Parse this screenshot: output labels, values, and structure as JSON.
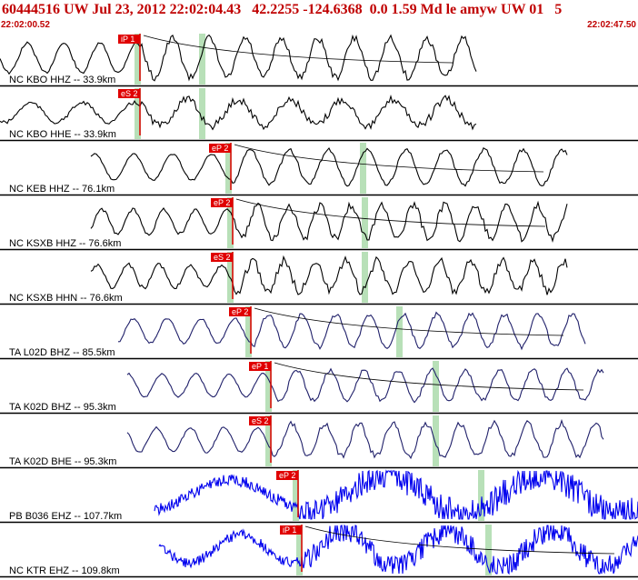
{
  "header": {
    "title": "60444516 UW Jul 23, 2012 22:02:04.43   42.2255 -124.6368  0.0 1.59 Md le amyw UW 01   5",
    "time_start": "22:02:00.52",
    "time_end": "22:02:47.50"
  },
  "colors": {
    "header_text": "#c00000",
    "pick_fill": "#e00000",
    "window_band": "#b8e0b8",
    "trace_black": "#000000",
    "trace_navy": "#20206a",
    "trace_blue": "#0000ee"
  },
  "traces": [
    {
      "label": "NC KBO HHZ -- 33.9km",
      "picks": [
        {
          "label": "iP 1",
          "t": 0.195
        }
      ],
      "color": "black",
      "amp": 0.9,
      "freq": 14,
      "noise": 0.25
    },
    {
      "label": "NC KBO HHE -- 33.9km",
      "picks": [
        {
          "label": "eS 2",
          "t": 0.3
        }
      ],
      "color": "black",
      "amp": 0.6,
      "freq": 20,
      "noise": 0.45
    },
    {
      "label": "NC KEB HHZ -- 76.1km",
      "picks": [
        {
          "label": "eP 2",
          "t": 0.36
        }
      ],
      "color": "black",
      "amp": 0.8,
      "freq": 15,
      "noise": 0.15
    },
    {
      "label": "NC KSXB HHZ -- 76.6km",
      "picks": [
        {
          "label": "eP 2",
          "t": 0.36
        }
      ],
      "color": "black",
      "amp": 0.75,
      "freq": 12,
      "noise": 0.35
    },
    {
      "label": "NC KSXB HHN -- 76.6km",
      "picks": [
        {
          "label": "eS 2",
          "t": 0.6
        }
      ],
      "color": "black",
      "amp": 0.7,
      "freq": 12,
      "noise": 0.4
    },
    {
      "label": "TA L02D BHZ -- 85.5km",
      "picks": [
        {
          "label": "eP 2",
          "t": 0.38
        }
      ],
      "color": "navy",
      "amp": 0.75,
      "freq": 13,
      "noise": 0.2
    },
    {
      "label": "TA K02D BHZ -- 95.3km",
      "picks": [
        {
          "label": "eP 1",
          "t": 0.41
        }
      ],
      "color": "navy",
      "amp": 0.7,
      "freq": 13,
      "noise": 0.2
    },
    {
      "label": "TA K02D BHE -- 95.3km",
      "picks": [
        {
          "label": "eS 2",
          "t": 0.68
        }
      ],
      "color": "navy",
      "amp": 0.75,
      "freq": 13,
      "noise": 0.25
    },
    {
      "label": "PB B036 EHZ -- 107.7km",
      "picks": [
        {
          "label": "eP 2",
          "t": 0.43
        }
      ],
      "color": "blue",
      "amp": 0.9,
      "freq": 60,
      "noise": 1.0
    },
    {
      "label": "NC KTR EHZ -- 109.8km",
      "picks": [
        {
          "label": "iP 1",
          "t": 0.44
        }
      ],
      "color": "blue",
      "amp": 0.85,
      "freq": 40,
      "noise": 0.9
    }
  ]
}
